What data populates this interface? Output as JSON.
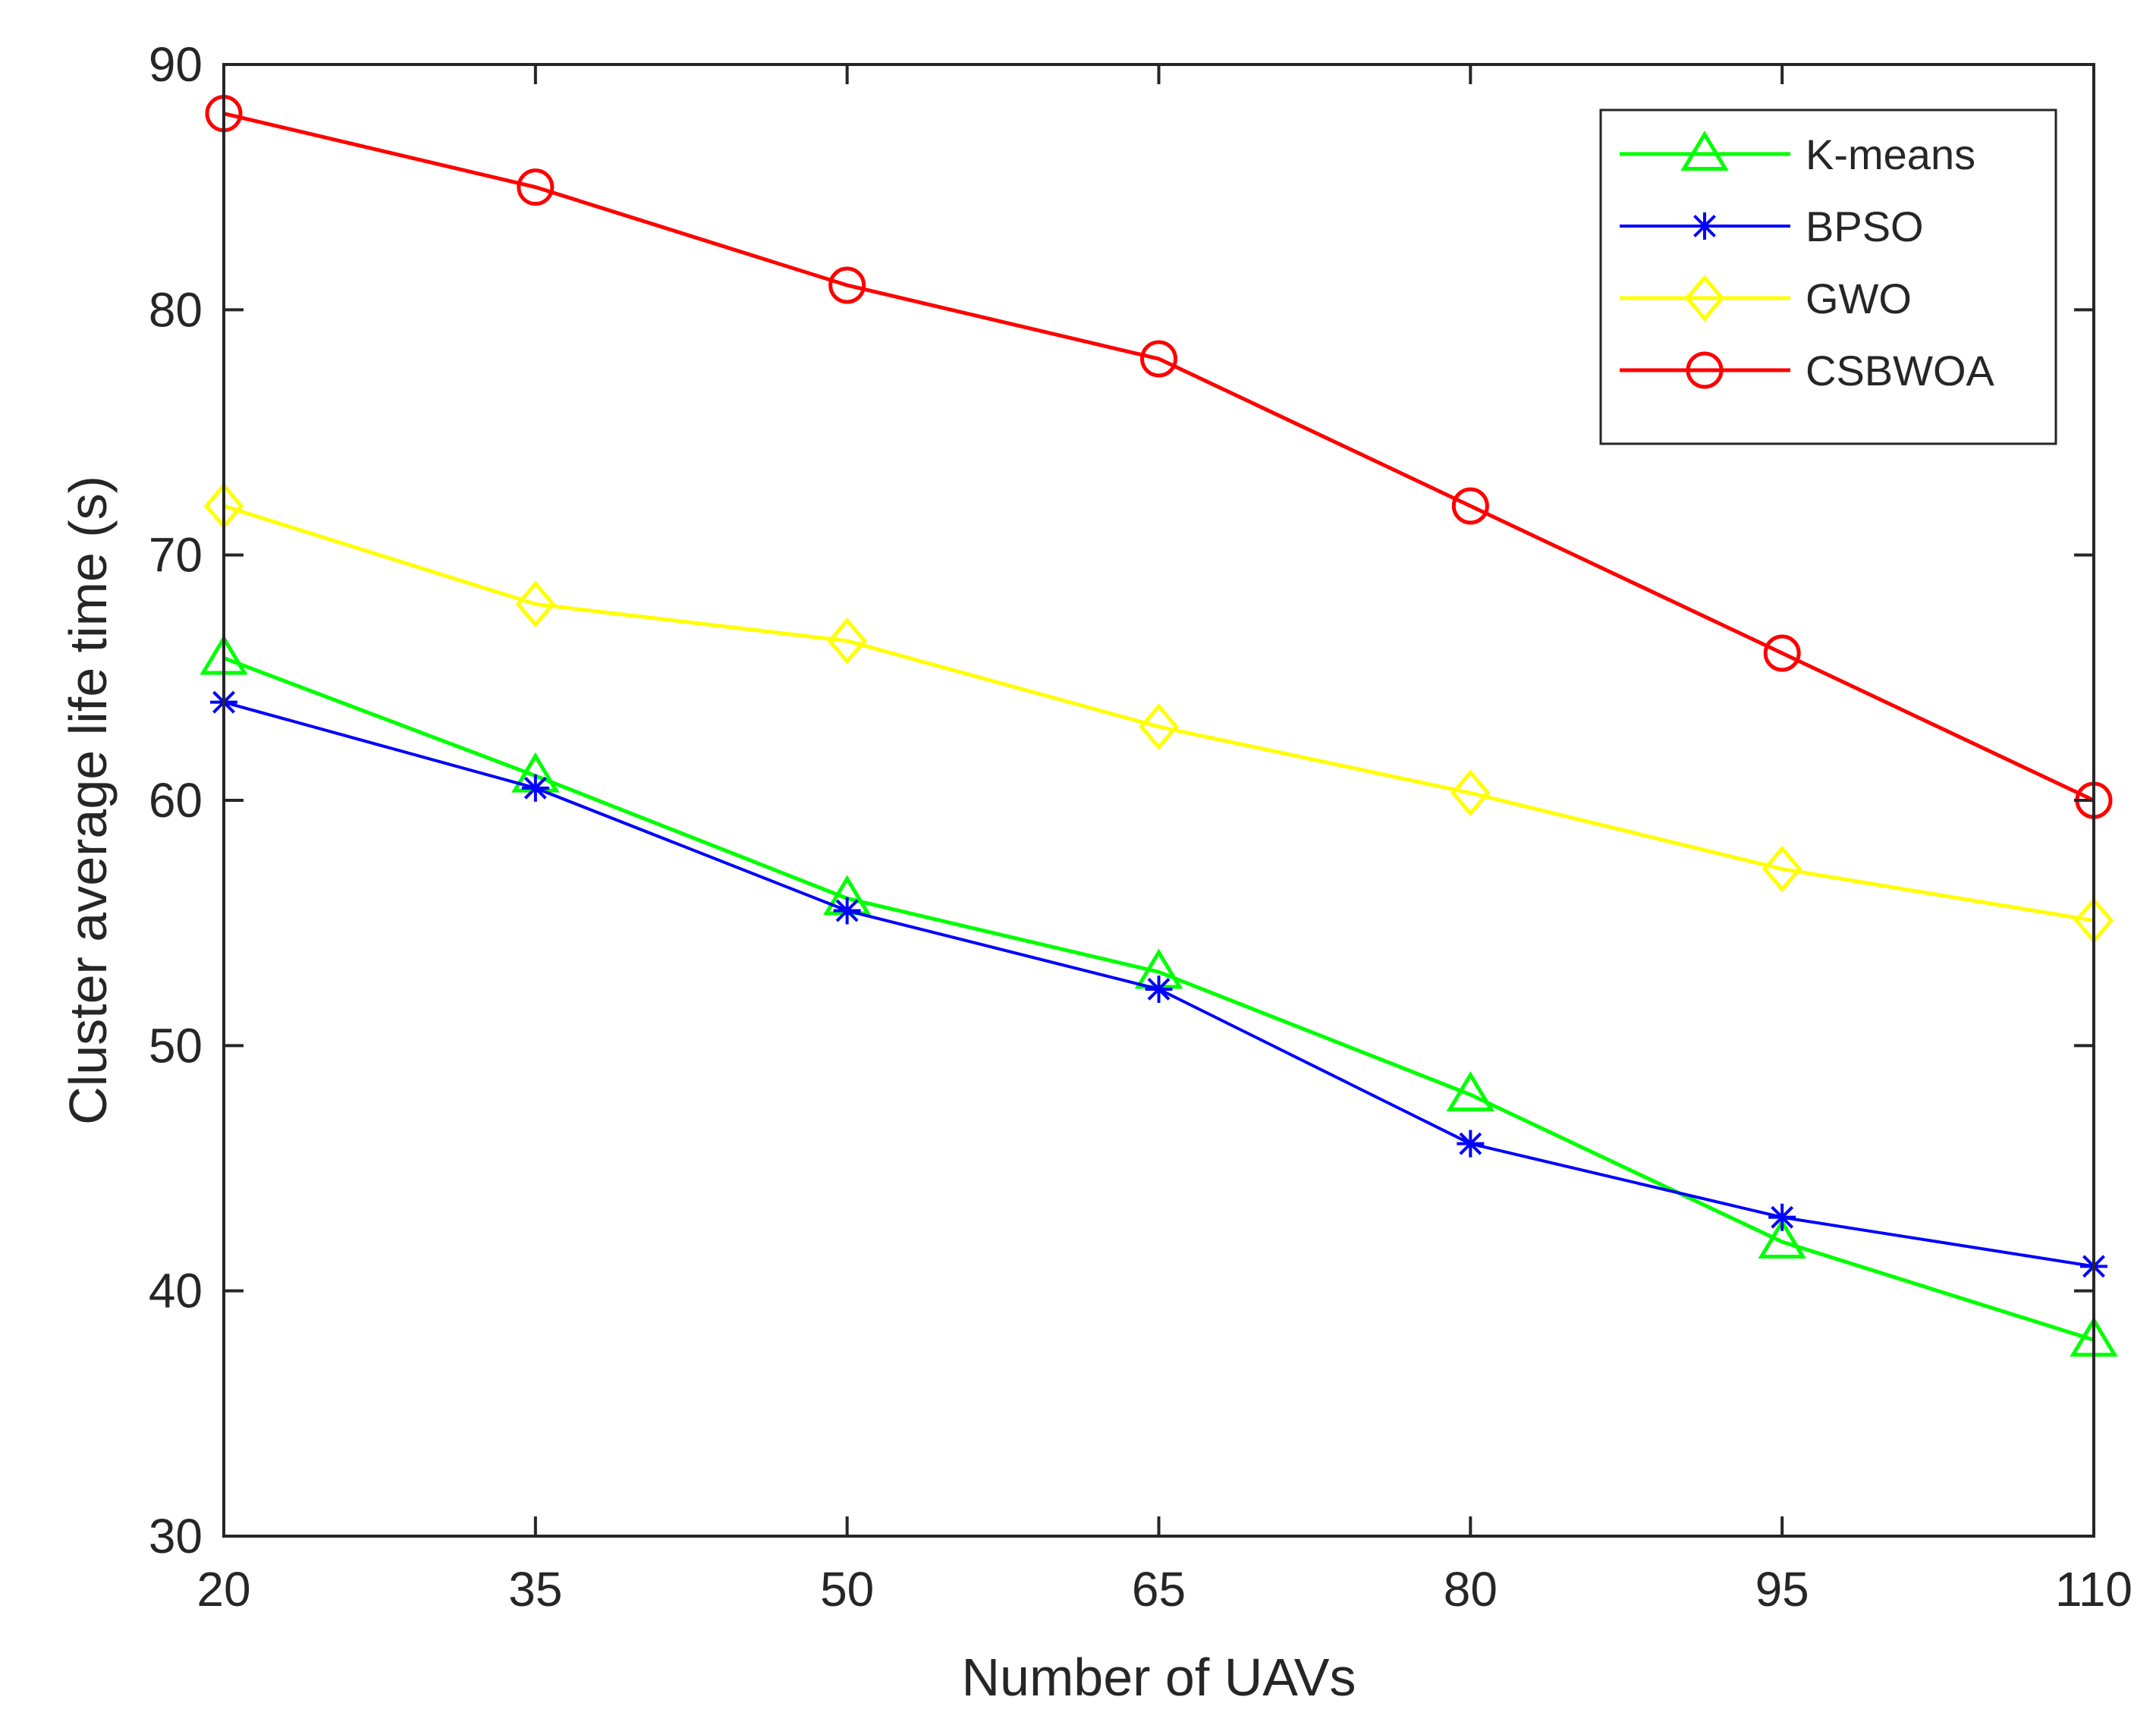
{
  "chart_data": {
    "type": "line",
    "title": "",
    "xlabel": "Number of UAVs",
    "ylabel": "Cluster average life time (s)",
    "x": [
      20,
      35,
      50,
      65,
      80,
      95,
      110
    ],
    "xlim": [
      20,
      110
    ],
    "ylim": [
      30,
      90
    ],
    "xticks": [
      20,
      35,
      50,
      65,
      80,
      95,
      110
    ],
    "yticks": [
      30,
      40,
      50,
      60,
      70,
      80,
      90
    ],
    "grid": false,
    "legend_position": "top-right",
    "series": [
      {
        "name": "K-means",
        "color": "#00ff00",
        "marker": "triangle",
        "values": [
          65.8,
          61,
          56,
          53,
          48,
          42,
          38
        ]
      },
      {
        "name": "BPSO",
        "color": "#0000ff",
        "marker": "asterisk",
        "values": [
          64,
          60.5,
          55.5,
          52.3,
          46,
          43,
          41
        ]
      },
      {
        "name": "GWO",
        "color": "#ffff00",
        "marker": "diamond",
        "values": [
          72,
          68,
          66.5,
          63,
          60.3,
          57.2,
          55.1
        ]
      },
      {
        "name": "CSBWOA",
        "color": "#ff0000",
        "marker": "circle",
        "values": [
          88,
          85,
          81,
          78,
          72,
          66,
          60
        ]
      }
    ]
  }
}
